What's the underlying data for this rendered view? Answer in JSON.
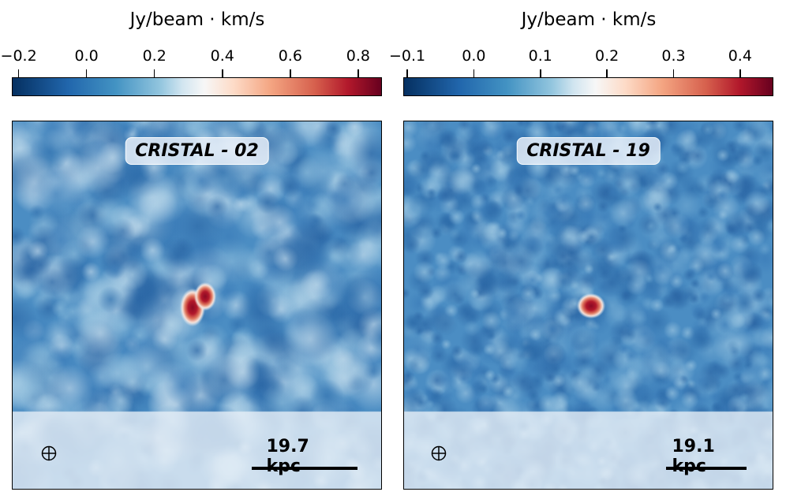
{
  "chart_data": [
    {
      "type": "heatmap",
      "title": "CRISTAL - 02",
      "colorbar": {
        "label": "Jy/beam · km/s",
        "range": [
          -0.22,
          0.87
        ],
        "ticks": [
          "−0.2",
          "0.0",
          "0.2",
          "0.4",
          "0.6",
          "0.8"
        ],
        "tick_values": [
          -0.2,
          0,
          0.2,
          0.4,
          0.6,
          0.8
        ],
        "colormap": "RdBu_r"
      },
      "scale_bar": "19.7 kpc",
      "peak_value": 0.85
    },
    {
      "type": "heatmap",
      "title": "CRISTAL - 19",
      "colorbar": {
        "label": "Jy/beam · km/s",
        "range": [
          -0.106,
          0.45
        ],
        "ticks": [
          "−0.1",
          "0.0",
          "0.1",
          "0.2",
          "0.3",
          "0.4"
        ],
        "tick_values": [
          -0.1,
          0,
          0.1,
          0.2,
          0.3,
          0.4
        ],
        "colormap": "RdBu_r"
      },
      "scale_bar": "19.1 kpc",
      "peak_value": 0.44
    }
  ]
}
